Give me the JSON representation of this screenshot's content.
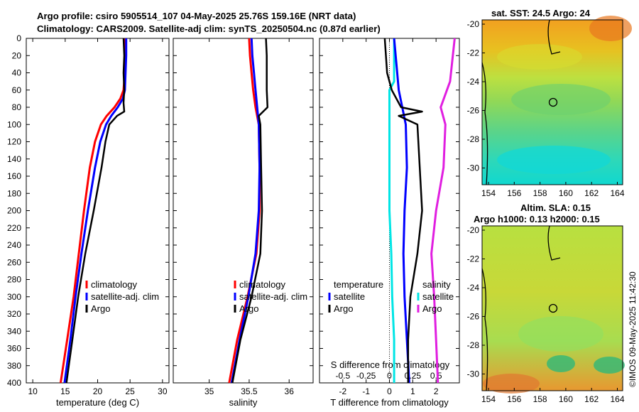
{
  "titles": {
    "line1": "Argo profile: csiro 5905514_107 04-May-2025 25.76S 159.16E (NRT data)",
    "line2": "Climatology: CARS2009. Satellite-adj clim: synTS_20250504.nc (0.87d earlier)"
  },
  "credit": "©IMOS 09-May-2025 11:42:30",
  "colors": {
    "climatology": "#ff0000",
    "satellite": "#0000ff",
    "argo": "#000000",
    "cyan": "#00e5e5",
    "magenta": "#e01ee0"
  },
  "chart_data": [
    {
      "type": "line",
      "name": "temperature-profile",
      "xlabel": "temperature (deg C)",
      "ylabel": "depth",
      "xlim": [
        9,
        31
      ],
      "ylim": [
        400,
        0
      ],
      "xticks": [
        "10",
        "15",
        "20",
        "25",
        "30"
      ],
      "yticks": [
        "0",
        "20",
        "40",
        "60",
        "80",
        "100",
        "120",
        "140",
        "160",
        "180",
        "200",
        "220",
        "240",
        "260",
        "280",
        "300",
        "320",
        "340",
        "360",
        "380",
        "400"
      ],
      "legend": [
        "climatology",
        "satellite-adj. clim",
        "Argo"
      ],
      "series": [
        {
          "name": "climatology",
          "depth": [
            0,
            20,
            40,
            60,
            70,
            80,
            90,
            100,
            120,
            150,
            200,
            250,
            300,
            350,
            400
          ],
          "values": [
            24.2,
            24.3,
            24.2,
            24.0,
            23.5,
            22.6,
            21.4,
            20.5,
            19.6,
            18.8,
            17.9,
            17.1,
            16.3,
            15.3,
            14.3
          ]
        },
        {
          "name": "satellite-adj. clim",
          "depth": [
            0,
            20,
            40,
            60,
            70,
            80,
            90,
            100,
            120,
            150,
            200,
            250,
            300,
            350,
            400
          ],
          "values": [
            24.4,
            24.4,
            24.3,
            24.2,
            23.9,
            23.1,
            22.1,
            21.3,
            20.4,
            19.6,
            18.5,
            17.5,
            16.6,
            15.8,
            14.9
          ]
        },
        {
          "name": "Argo",
          "depth": [
            0,
            20,
            40,
            60,
            75,
            85,
            90,
            100,
            120,
            150,
            200,
            250,
            300,
            350,
            400
          ],
          "values": [
            24.0,
            24.1,
            24.0,
            24.1,
            24.0,
            24.1,
            23.0,
            21.8,
            21.2,
            20.6,
            19.4,
            18.1,
            17.0,
            16.1,
            15.2
          ]
        }
      ]
    },
    {
      "type": "line",
      "name": "salinity-profile",
      "xlabel": "salinity",
      "ylabel": "depth",
      "xlim": [
        34.55,
        36.3
      ],
      "ylim": [
        400,
        0
      ],
      "xticks": [
        "35",
        "35.5",
        "36"
      ],
      "legend": [
        "climatology",
        "satellite-adj. clim",
        "Argo"
      ],
      "series": [
        {
          "name": "climatology",
          "depth": [
            0,
            20,
            40,
            60,
            80,
            100,
            150,
            200,
            250,
            300,
            350,
            400
          ],
          "values": [
            35.5,
            35.51,
            35.53,
            35.55,
            35.58,
            35.62,
            35.63,
            35.63,
            35.59,
            35.48,
            35.35,
            35.25
          ]
        },
        {
          "name": "satellite-adj. clim",
          "depth": [
            0,
            20,
            40,
            60,
            80,
            100,
            150,
            200,
            250,
            300,
            350,
            400
          ],
          "values": [
            35.53,
            35.54,
            35.56,
            35.58,
            35.6,
            35.62,
            35.63,
            35.62,
            35.58,
            35.49,
            35.38,
            35.28
          ]
        },
        {
          "name": "Argo",
          "depth": [
            0,
            20,
            40,
            60,
            80,
            90,
            100,
            150,
            200,
            250,
            300,
            350,
            400
          ],
          "values": [
            35.71,
            35.72,
            35.72,
            35.72,
            35.73,
            35.62,
            35.64,
            35.65,
            35.66,
            35.64,
            35.53,
            35.39,
            35.29
          ]
        }
      ]
    },
    {
      "type": "line",
      "name": "difference-profile",
      "xlabel": "T difference from climatology",
      "x2label": "S difference from climatology",
      "xlim": [
        -3,
        3
      ],
      "ylim": [
        400,
        0
      ],
      "xticks": [
        "-2",
        "-1",
        "0",
        "1",
        "2"
      ],
      "x2ticks": [
        "-0.5",
        "-0.25",
        "0",
        "0.25",
        "0.5"
      ],
      "legend_left_title": "temperature",
      "legend_left": [
        "satellite",
        "Argo"
      ],
      "legend_right_title": "salinity",
      "legend_right": [
        "satellite",
        "Argo"
      ],
      "series": [
        {
          "name": "T satellite",
          "depth": [
            0,
            60,
            80,
            100,
            150,
            200,
            250,
            300,
            350,
            400
          ],
          "values": [
            0.2,
            0.4,
            0.55,
            0.7,
            0.75,
            0.65,
            0.6,
            0.65,
            0.75,
            0.85
          ]
        },
        {
          "name": "T Argo",
          "depth": [
            0,
            40,
            60,
            80,
            85,
            90,
            100,
            150,
            200,
            250,
            300,
            350,
            400
          ],
          "values": [
            -0.2,
            -0.1,
            0.1,
            0.5,
            1.4,
            0.4,
            1.2,
            1.3,
            1.4,
            1.2,
            0.9,
            0.8,
            0.8
          ]
        },
        {
          "name": "S satellite",
          "depth": [
            0,
            50,
            60,
            80,
            100,
            150,
            200,
            250,
            300,
            350,
            400
          ],
          "values": [
            0.05,
            0.05,
            0.0,
            0.0,
            0.0,
            0.0,
            0.0,
            0.02,
            0.03,
            0.05,
            0.05
          ]
        },
        {
          "name": "S Argo",
          "depth": [
            0,
            50,
            80,
            100,
            150,
            200,
            250,
            300,
            350,
            400
          ],
          "values": [
            0.7,
            0.65,
            0.55,
            0.6,
            0.58,
            0.5,
            0.45,
            0.48,
            0.5,
            0.52
          ]
        }
      ]
    },
    {
      "type": "heatmap",
      "name": "sst-map",
      "title": "sat. SST: 24.5 Argo: 24",
      "xticks": [
        "154",
        "156",
        "158",
        "160",
        "162",
        "164"
      ],
      "yticks": [
        "-20",
        "-22",
        "-24",
        "-26",
        "-28",
        "-30"
      ]
    },
    {
      "type": "heatmap",
      "name": "sla-map",
      "title_line1": "Altim. SLA: 0.15",
      "title_line2": "Argo h1000: 0.13 h2000: 0.15",
      "xticks": [
        "154",
        "156",
        "158",
        "160",
        "162",
        "164"
      ],
      "yticks": [
        "-20",
        "-22",
        "-24",
        "-26",
        "-28",
        "-30"
      ]
    }
  ]
}
